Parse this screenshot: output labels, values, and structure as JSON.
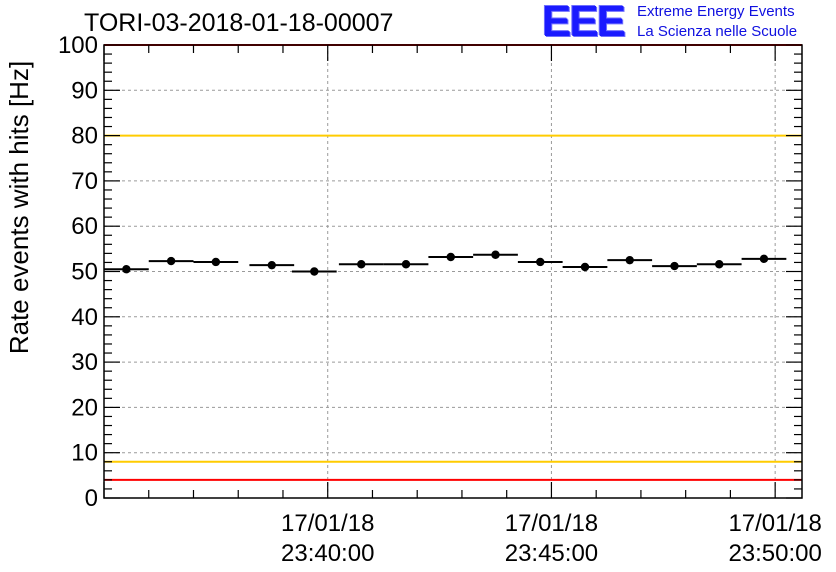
{
  "chart_data": {
    "type": "scatter",
    "title": "TORI-03-2018-01-18-00007",
    "xlabel": "",
    "ylabel": "Rate events with hits [Hz]",
    "ylim": [
      0,
      100
    ],
    "xlim_minutes": [
      -5.0,
      10.6
    ],
    "y_ticks": [
      0,
      10,
      20,
      30,
      40,
      50,
      60,
      70,
      80,
      90,
      100
    ],
    "y_tick_labels": [
      "0",
      "10",
      "20",
      "30",
      "40",
      "50",
      "60",
      "70",
      "80",
      "90",
      "100"
    ],
    "x_ticks_minutes": [
      0,
      5,
      10
    ],
    "x_tick_labels": [
      {
        "date": "17/01/18",
        "time": "23:40:00"
      },
      {
        "date": "17/01/18",
        "time": "23:45:00"
      },
      {
        "date": "17/01/18",
        "time": "23:50:00"
      }
    ],
    "bin_width_minutes": 1.0,
    "x_minutes": [
      -4.5,
      -3.5,
      -2.5,
      -1.25,
      -0.3,
      0.75,
      1.75,
      2.75,
      3.75,
      4.75,
      5.75,
      6.75,
      7.75,
      8.75,
      9.75
    ],
    "values": [
      50.5,
      52.3,
      52.1,
      51.4,
      50.0,
      51.6,
      51.6,
      53.2,
      53.7,
      52.1,
      51.0,
      52.5,
      51.2,
      51.6,
      52.8
    ],
    "reference_lines": [
      {
        "name": "upper-red",
        "y": 100,
        "color": "#ff0000"
      },
      {
        "name": "upper-yellow",
        "y": 80,
        "color": "#ffcc00"
      },
      {
        "name": "lower-yellow",
        "y": 8,
        "color": "#ffcc00"
      },
      {
        "name": "lower-red",
        "y": 4,
        "color": "#ff0000"
      }
    ],
    "grid": true
  },
  "logo": {
    "letters": "EEE",
    "line1": "Extreme Energy Events",
    "line2": "La Scienza nelle Scuole",
    "color": "#1a1aff"
  }
}
